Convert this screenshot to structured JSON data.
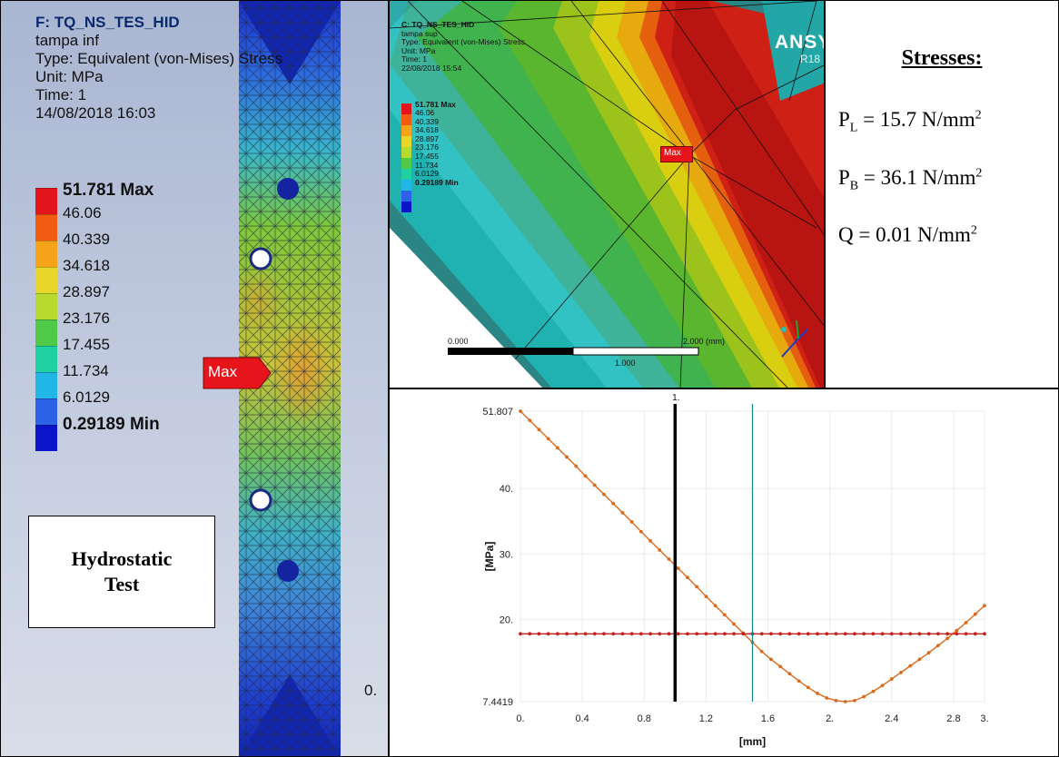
{
  "left_panel": {
    "title": "F: TQ_NS_TES_HID",
    "name": "tampa inf",
    "type": "Type: Equivalent (von-Mises) Stress",
    "unit": "Unit: MPa",
    "time": "Time: 1",
    "date": "14/08/2018 16:03",
    "legend_max": "51.781 Max",
    "legend_levels": [
      "46.06",
      "40.339",
      "34.618",
      "28.897",
      "23.176",
      "17.455",
      "11.734",
      "6.0129"
    ],
    "legend_min": "0.29189 Min",
    "max_flag": "Max",
    "box_line1": "Hydrostatic",
    "box_line2": "Test",
    "corner_value": "0."
  },
  "mid_panel": {
    "title": "C: TQ_NS_TES_HID",
    "name": "tampa sup",
    "type": "Type: Equivalent (von-Mises) Stress",
    "unit": "Unit: MPa",
    "time": "Time: 1",
    "date": "22/08/2018 15:54",
    "logo": "ANSY",
    "release": "R18",
    "legend_max": "51.781 Max",
    "legend_levels": [
      "46.06",
      "40.339",
      "34.618",
      "28.897",
      "23.176",
      "17.455",
      "11.734",
      "6.0129"
    ],
    "legend_min": "0.29189 Min",
    "max_flag": "Max",
    "scale_start": "0.000",
    "scale_end": "2.000 (mm)",
    "scale_mid": "1.000"
  },
  "stresses": {
    "title": "Stresses:",
    "pl": {
      "sym": "P",
      "sub": "L",
      "value": " = 15.7 N/mm",
      "exp": "2"
    },
    "pb": {
      "sym": "P",
      "sub": "B",
      "value": " = 36.1 N/mm",
      "exp": "2"
    },
    "q": {
      "sym": "Q",
      "value": " =  0.01 N/mm",
      "exp": "2"
    }
  },
  "legend_colors": [
    "#e3141b",
    "#f25b12",
    "#f7a31a",
    "#e8d72a",
    "#b6db2e",
    "#4fc947",
    "#1fd0a3",
    "#21b6e6",
    "#2b62e8",
    "#0a14c8"
  ],
  "chart_data": {
    "type": "line",
    "xlabel": "[mm]",
    "ylabel": "[MPa]",
    "xlim": [
      0,
      3
    ],
    "ylim": [
      7.4419,
      51.807
    ],
    "x_ticks": [
      "0.",
      "0.4",
      "0.8",
      "1.2",
      "1.6",
      "2.",
      "2.4",
      "2.8",
      "3."
    ],
    "x_tick_values": [
      0,
      0.4,
      0.8,
      1.2,
      1.6,
      2.0,
      2.4,
      2.8,
      3.0
    ],
    "y_ticks": [
      "7.4419",
      "20.",
      "30.",
      "40.",
      "51.807"
    ],
    "y_tick_values": [
      7.4419,
      20,
      30,
      40,
      51.807
    ],
    "vertical_markers": [
      {
        "x": 1.0,
        "label": "1.",
        "color": "#000000"
      },
      {
        "x": 1.5,
        "label": "",
        "color": "#138a8a"
      }
    ],
    "series": [
      {
        "color": "#d96a1c",
        "x": [
          0,
          0.06,
          0.12,
          0.18,
          0.24,
          0.3,
          0.36,
          0.42,
          0.48,
          0.54,
          0.6,
          0.66,
          0.72,
          0.78,
          0.84,
          0.9,
          0.96,
          1.02,
          1.08,
          1.14,
          1.2,
          1.26,
          1.32,
          1.38,
          1.44,
          1.5,
          1.56,
          1.62,
          1.68,
          1.74,
          1.8,
          1.86,
          1.92,
          1.98,
          2.04,
          2.1,
          2.16,
          2.22,
          2.28,
          2.34,
          2.4,
          2.46,
          2.52,
          2.58,
          2.64,
          2.7,
          2.76,
          2.82,
          2.88,
          2.94,
          3.0
        ],
        "y": [
          51.8,
          50.4,
          49.0,
          47.6,
          46.2,
          44.8,
          43.4,
          41.9,
          40.5,
          39.1,
          37.7,
          36.3,
          34.9,
          33.4,
          32.0,
          30.6,
          29.2,
          27.8,
          26.4,
          25.0,
          23.5,
          22.1,
          20.7,
          19.3,
          17.9,
          16.5,
          15.1,
          13.9,
          12.8,
          11.7,
          10.6,
          9.6,
          8.7,
          8.0,
          7.6,
          7.44,
          7.6,
          8.2,
          9.0,
          9.9,
          10.9,
          11.9,
          12.9,
          13.9,
          14.9,
          16.0,
          17.1,
          18.3,
          19.5,
          20.8,
          22.1
        ]
      },
      {
        "color": "#c8211b",
        "x": [
          0,
          0.06,
          0.12,
          0.18,
          0.24,
          0.3,
          0.36,
          0.42,
          0.48,
          0.54,
          0.6,
          0.66,
          0.72,
          0.78,
          0.84,
          0.9,
          0.96,
          1.02,
          1.08,
          1.14,
          1.2,
          1.26,
          1.32,
          1.38,
          1.44,
          1.5,
          1.56,
          1.62,
          1.68,
          1.74,
          1.8,
          1.86,
          1.92,
          1.98,
          2.04,
          2.1,
          2.16,
          2.22,
          2.28,
          2.34,
          2.4,
          2.46,
          2.52,
          2.58,
          2.64,
          2.7,
          2.76,
          2.82,
          2.88,
          2.94,
          3.0
        ],
        "y": [
          17.8,
          17.8,
          17.8,
          17.8,
          17.8,
          17.8,
          17.8,
          17.8,
          17.8,
          17.8,
          17.8,
          17.8,
          17.8,
          17.8,
          17.8,
          17.8,
          17.8,
          17.8,
          17.8,
          17.8,
          17.8,
          17.8,
          17.8,
          17.8,
          17.8,
          17.8,
          17.8,
          17.8,
          17.8,
          17.8,
          17.8,
          17.8,
          17.8,
          17.8,
          17.8,
          17.8,
          17.8,
          17.8,
          17.8,
          17.8,
          17.8,
          17.8,
          17.8,
          17.8,
          17.8,
          17.8,
          17.8,
          17.8,
          17.8,
          17.8,
          17.8
        ]
      }
    ]
  }
}
